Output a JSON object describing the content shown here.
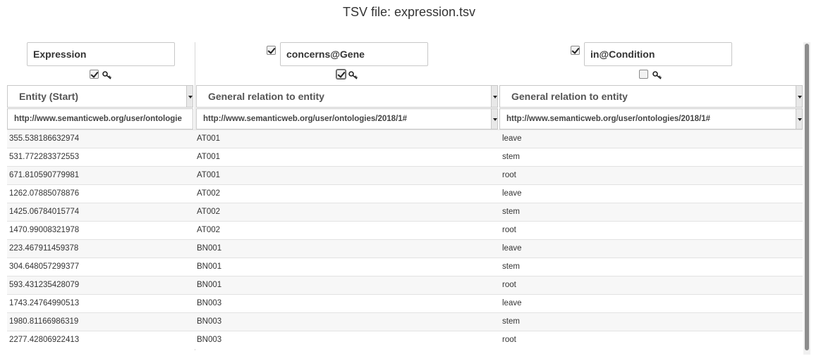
{
  "title": "TSV file: expression.tsv",
  "columns": [
    {
      "name": "Expression",
      "include_checked": null,
      "key_checked": true,
      "relation": "Entity (Start)",
      "url": "http://www.semanticweb.org/user/ontologie"
    },
    {
      "name": "concerns@Gene",
      "include_checked": true,
      "key_checked": true,
      "relation": "General relation to entity",
      "url": "http://www.semanticweb.org/user/ontologies/2018/1#"
    },
    {
      "name": "in@Condition",
      "include_checked": true,
      "key_checked": false,
      "relation": "General relation to entity",
      "url": "http://www.semanticweb.org/user/ontologies/2018/1#"
    }
  ],
  "rows": [
    [
      "355.538186632974",
      "AT001",
      "leave"
    ],
    [
      "531.772283372553",
      "AT001",
      "stem"
    ],
    [
      "671.810590779981",
      "AT001",
      "root"
    ],
    [
      "1262.07885078876",
      "AT002",
      "leave"
    ],
    [
      "1425.06784015774",
      "AT002",
      "stem"
    ],
    [
      "1470.99008321978",
      "AT002",
      "root"
    ],
    [
      "223.467911459378",
      "BN001",
      "leave"
    ],
    [
      "304.648057299377",
      "BN001",
      "stem"
    ],
    [
      "593.431235428079",
      "BN001",
      "root"
    ],
    [
      "1743.24764990513",
      "BN003",
      "leave"
    ],
    [
      "1980.81166986319",
      "BN003",
      "stem"
    ],
    [
      "2277.42806922413",
      "BN003",
      "root"
    ]
  ]
}
